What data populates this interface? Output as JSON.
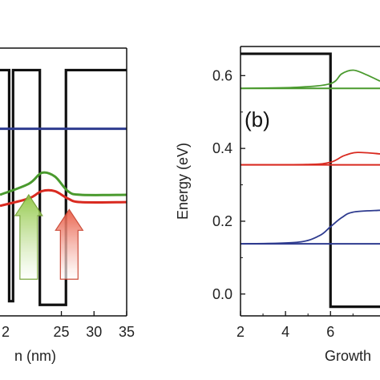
{
  "colors": {
    "profile": "#111111",
    "blue": "#2e3b8f",
    "red": "#d92a20",
    "green": "#4a9a2e",
    "green_arrow": "#8dc63f",
    "red_arrow": "#e8563e"
  },
  "chart_data": [
    {
      "type": "line",
      "panel": "left (cropped)",
      "xlabel": "n (nm)",
      "ylabel": "",
      "xlim": [
        15.6,
        35
      ],
      "ylim": [
        -0.03,
        0.7
      ],
      "xticks": [
        25,
        30,
        35
      ],
      "xtick_labels": [
        "25",
        "30",
        "35"
      ],
      "partial_tick_labels": [
        "2"
      ],
      "grid": false,
      "series": [
        {
          "role": "potential-profile",
          "x": [
            15.6,
            17.0,
            17.0,
            17.6,
            17.6,
            21.7,
            21.7,
            25.7,
            25.7,
            35.0
          ],
          "y": [
            0.64,
            0.64,
            0.01,
            0.01,
            0.64,
            0.64,
            0.0,
            0.0,
            0.64,
            0.64
          ]
        },
        {
          "role": "blue-level",
          "x": [
            15.6,
            35.0
          ],
          "y": [
            0.48,
            0.48
          ]
        },
        {
          "role": "red-level",
          "x": [
            15.6,
            20.0,
            22.0,
            24.0,
            26.0,
            28.0,
            35.0
          ],
          "y": [
            0.27,
            0.29,
            0.31,
            0.31,
            0.29,
            0.28,
            0.28
          ]
        },
        {
          "role": "green-level",
          "x": [
            15.6,
            20.0,
            22.0,
            24.0,
            26.0,
            28.0,
            35.0
          ],
          "y": [
            0.3,
            0.33,
            0.36,
            0.35,
            0.31,
            0.3,
            0.3
          ]
        }
      ],
      "annotations": [
        {
          "kind": "arrow",
          "color": "green",
          "x": 20.0,
          "y_from": 0.07,
          "y_to": 0.3
        },
        {
          "kind": "arrow",
          "color": "red",
          "x": 26.2,
          "y_from": 0.07,
          "y_to": 0.26
        }
      ]
    },
    {
      "type": "line",
      "panel": "b",
      "panel_label": "(b)",
      "xlabel": "Growth",
      "ylabel": "Energy (eV)",
      "xlim": [
        2,
        8.2
      ],
      "ylim": [
        -0.06,
        0.68
      ],
      "xticks": [
        2,
        4,
        6
      ],
      "xtick_labels": [
        "2",
        "4",
        "6"
      ],
      "yticks": [
        0.0,
        0.2,
        0.4,
        0.6
      ],
      "ytick_labels": [
        "0.0",
        "0.2",
        "0.4",
        "0.6"
      ],
      "grid": false,
      "series": [
        {
          "role": "potential-profile",
          "x": [
            2.0,
            6.0,
            6.0,
            8.2
          ],
          "y": [
            0.66,
            0.66,
            -0.035,
            -0.035
          ]
        },
        {
          "role": "green-level",
          "x": [
            2.0,
            8.2
          ],
          "y": [
            0.565,
            0.565
          ]
        },
        {
          "role": "green-wavefunction",
          "x": [
            2.0,
            4.5,
            6.0,
            6.5,
            7.0,
            7.5,
            8.2
          ],
          "y": [
            0.565,
            0.568,
            0.578,
            0.605,
            0.615,
            0.605,
            0.585
          ]
        },
        {
          "role": "red-level",
          "x": [
            2.0,
            8.2
          ],
          "y": [
            0.355,
            0.355
          ]
        },
        {
          "role": "red-wavefunction",
          "x": [
            2.0,
            5.0,
            6.0,
            6.6,
            7.2,
            8.2
          ],
          "y": [
            0.355,
            0.356,
            0.362,
            0.38,
            0.389,
            0.385
          ]
        },
        {
          "role": "blue-level",
          "x": [
            2.0,
            8.2
          ],
          "y": [
            0.138,
            0.138
          ]
        },
        {
          "role": "blue-wavefunction",
          "x": [
            2.0,
            4.5,
            5.5,
            6.0,
            6.5,
            7.0,
            8.2
          ],
          "y": [
            0.138,
            0.142,
            0.16,
            0.185,
            0.21,
            0.225,
            0.23
          ]
        }
      ]
    }
  ]
}
